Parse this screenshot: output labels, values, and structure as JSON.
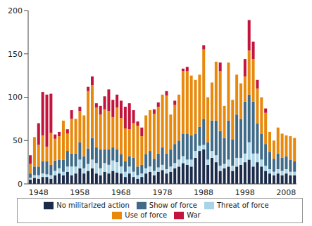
{
  "chart_data": {
    "type": "bar",
    "stacked": true,
    "grid": false,
    "legend": "bottom",
    "categories": [
      null,
      null,
      "1948",
      null,
      null,
      null,
      null,
      null,
      null,
      null,
      null,
      null,
      "1958",
      null,
      null,
      null,
      null,
      null,
      null,
      null,
      null,
      null,
      "1968",
      null,
      null,
      null,
      null,
      null,
      null,
      null,
      null,
      null,
      "1978",
      null,
      null,
      null,
      null,
      null,
      null,
      null,
      null,
      null,
      "1988",
      null,
      null,
      null,
      null,
      null,
      null,
      null,
      null,
      null,
      "1998",
      null,
      null,
      null,
      null,
      null,
      null,
      null,
      null,
      null,
      "2008",
      null,
      null
    ],
    "ylim": [
      0,
      200
    ],
    "yticks": [
      0,
      50,
      100,
      150,
      200
    ],
    "series": [
      {
        "name": "No militarized action",
        "color": "#1c2b4a",
        "values": [
          5,
          7,
          6,
          8,
          8,
          6,
          10,
          12,
          10,
          14,
          10,
          12,
          18,
          12,
          15,
          18,
          12,
          10,
          14,
          12,
          15,
          13,
          12,
          8,
          12,
          8,
          6,
          8,
          12,
          14,
          10,
          14,
          16,
          12,
          14,
          18,
          20,
          24,
          22,
          20,
          30,
          38,
          40,
          22,
          30,
          25,
          15,
          18,
          20,
          15,
          20,
          22,
          25,
          28,
          20,
          25,
          20,
          15,
          12,
          10,
          12,
          10,
          12,
          10,
          10
        ]
      },
      {
        "name": "Threat of force",
        "color": "#a9d3e6",
        "values": [
          2,
          3,
          4,
          4,
          3,
          4,
          5,
          6,
          4,
          6,
          10,
          8,
          10,
          6,
          8,
          10,
          12,
          8,
          10,
          10,
          12,
          12,
          8,
          6,
          8,
          6,
          4,
          4,
          6,
          6,
          5,
          5,
          6,
          5,
          6,
          6,
          8,
          8,
          6,
          8,
          8,
          6,
          5,
          6,
          8,
          8,
          6,
          5,
          8,
          6,
          10,
          8,
          10,
          20,
          15,
          10,
          8,
          6,
          5,
          4,
          5,
          5,
          5,
          4,
          4
        ]
      },
      {
        "name": "Show of force",
        "color": "#3f6a88",
        "values": [
          5,
          10,
          10,
          14,
          15,
          12,
          12,
          10,
          14,
          18,
          15,
          15,
          20,
          14,
          18,
          25,
          18,
          22,
          16,
          18,
          15,
          15,
          14,
          12,
          12,
          16,
          10,
          10,
          16,
          18,
          14,
          16,
          20,
          18,
          20,
          22,
          22,
          26,
          30,
          28,
          20,
          22,
          30,
          20,
          35,
          40,
          40,
          30,
          45,
          30,
          50,
          45,
          60,
          55,
          60,
          35,
          30,
          25,
          20,
          15,
          18,
          15,
          15,
          14,
          12
        ]
      },
      {
        "name": "Use of force",
        "color": "#e8890c",
        "values": [
          11,
          34,
          25,
          30,
          17,
          37,
          25,
          27,
          45,
          20,
          40,
          40,
          36,
          47,
          66,
          61,
          46,
          40,
          46,
          44,
          35,
          48,
          42,
          38,
          31,
          40,
          47,
          33,
          45,
          47,
          52,
          54,
          61,
          67,
          40,
          45,
          53,
          72,
          72,
          69,
          62,
          60,
          80,
          52,
          44,
          68,
          69,
          37,
          67,
          46,
          46,
          41,
          29,
          51,
          49,
          40,
          42,
          36,
          23,
          21,
          30,
          28,
          24,
          27,
          27
        ]
      },
      {
        "name": "War",
        "color": "#c2143c",
        "values": [
          10,
          0,
          25,
          50,
          60,
          45,
          5,
          5,
          0,
          5,
          10,
          0,
          5,
          0,
          5,
          10,
          5,
          10,
          15,
          25,
          20,
          15,
          20,
          25,
          30,
          15,
          5,
          10,
          0,
          0,
          5,
          5,
          0,
          5,
          0,
          5,
          0,
          3,
          5,
          0,
          0,
          0,
          5,
          0,
          0,
          0,
          10,
          0,
          0,
          0,
          0,
          0,
          20,
          35,
          20,
          10,
          0,
          5,
          0,
          0,
          0,
          0,
          0,
          0,
          0
        ]
      }
    ]
  }
}
